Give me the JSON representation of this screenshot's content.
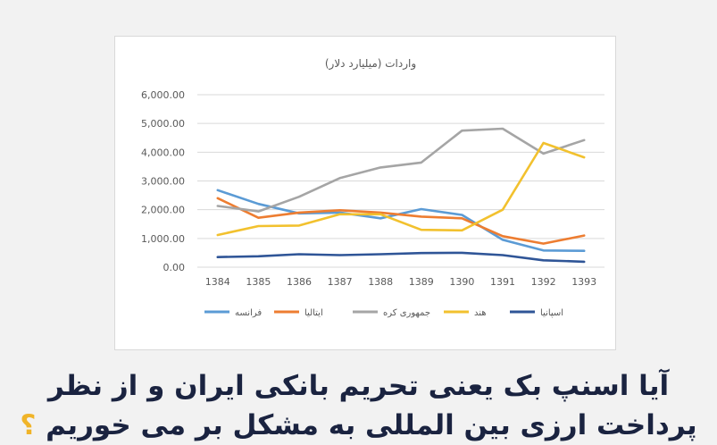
{
  "headline": {
    "line1": "آیا اسنپ بک یعنی تحریم بانکی ایران و از نظر",
    "line2": "پرداخت ارزی بین المللی به مشکل بر می خوریم",
    "question_mark": "؟"
  },
  "chart_data": {
    "type": "line",
    "title": "واردات (میلیارد دلار)",
    "x": [
      "1384",
      "1385",
      "1386",
      "1387",
      "1388",
      "1389",
      "1390",
      "1391",
      "1392",
      "1393"
    ],
    "y_ticks": [
      "0.00",
      "1,000.00",
      "2,000.00",
      "3,000.00",
      "4,000.00",
      "5,000.00",
      "6,000.00"
    ],
    "ylim": [
      0,
      6000
    ],
    "grid": true,
    "legend_position": "bottom",
    "series": [
      {
        "name": "فرانسه",
        "color": "#5b9bd5",
        "values": [
          2680,
          2200,
          1870,
          1900,
          1700,
          2020,
          1820,
          950,
          580,
          570
        ]
      },
      {
        "name": "ایتالیا",
        "color": "#ed7d31",
        "values": [
          2400,
          1720,
          1900,
          1980,
          1900,
          1760,
          1700,
          1080,
          820,
          1100
        ]
      },
      {
        "name": "جمهوری کره",
        "color": "#a5a5a5",
        "values": [
          2130,
          1940,
          2450,
          3100,
          3470,
          3640,
          4750,
          4820,
          3950,
          4420
        ]
      },
      {
        "name": "هند",
        "color": "#f2c12e",
        "values": [
          1120,
          1430,
          1450,
          1840,
          1840,
          1300,
          1280,
          2000,
          4320,
          3820
        ]
      },
      {
        "name": "اسپانیا",
        "color": "#2f5597",
        "values": [
          350,
          380,
          450,
          420,
          450,
          490,
          500,
          420,
          240,
          190
        ]
      }
    ]
  }
}
